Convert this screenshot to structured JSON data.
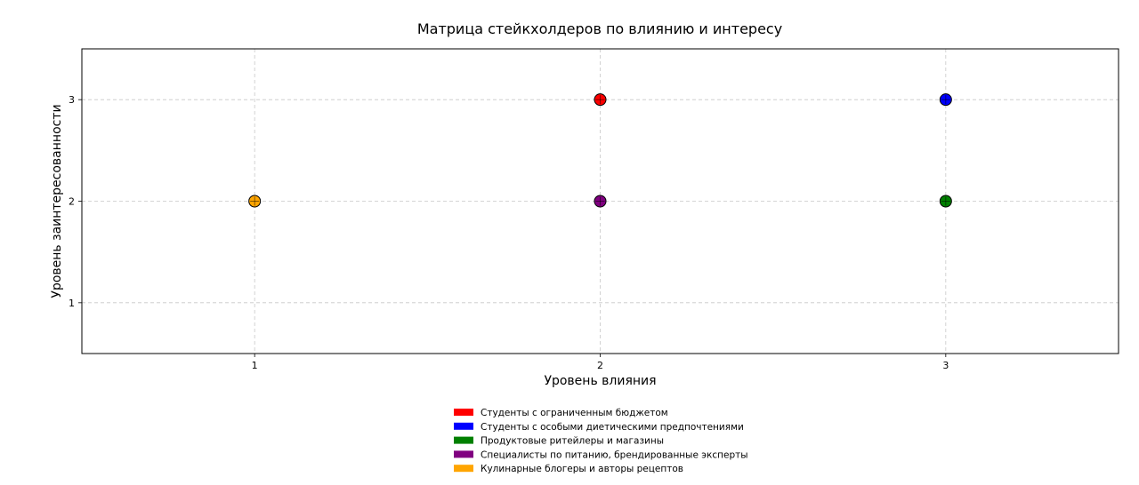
{
  "chart_data": {
    "type": "scatter",
    "title": "Матрица стейкхолдеров по влиянию и интересу",
    "xlabel": "Уровень влияния",
    "ylabel": "Уровень заинтересованности",
    "xlim": [
      0.5,
      3.5
    ],
    "ylim": [
      0.5,
      3.5
    ],
    "xticks": [
      1,
      2,
      3
    ],
    "yticks": [
      1,
      2,
      3
    ],
    "grid": true,
    "legend_position": "bottom-center",
    "series": [
      {
        "name": "Студенты с ограниченным бюджетом",
        "color": "#ff0000",
        "points": [
          {
            "x": 2,
            "y": 3
          }
        ]
      },
      {
        "name": "Студенты с особыми диетическими предпочтениями",
        "color": "#0000ff",
        "points": [
          {
            "x": 3,
            "y": 3
          }
        ]
      },
      {
        "name": "Продуктовые ритейлеры и магазины",
        "color": "#008000",
        "points": [
          {
            "x": 3,
            "y": 2
          }
        ]
      },
      {
        "name": "Специалисты по питанию, брендированные эксперты",
        "color": "#800080",
        "points": [
          {
            "x": 2,
            "y": 2
          }
        ]
      },
      {
        "name": "Кулинарные блогеры и авторы рецептов",
        "color": "#ffa500",
        "points": [
          {
            "x": 1,
            "y": 2
          }
        ]
      }
    ]
  }
}
